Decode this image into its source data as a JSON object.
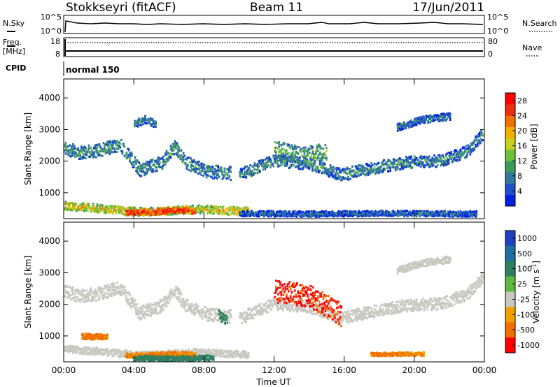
{
  "header": {
    "station": "Stokkseyri (fitACF)",
    "beam": "Beam 11",
    "date": "17/Jun/2011"
  },
  "top_panels": {
    "nsky_label": "N.Sky",
    "nsky_ticks": [
      "10^5",
      "10^0"
    ],
    "nsearch_label": "N.Search",
    "nsearch_ticks": [
      "10^5",
      "10^0"
    ],
    "freq_label": "Freq.",
    "freq_unit": "[MHz]",
    "freq_ticks": [
      "18",
      "8"
    ],
    "nave_label": "Nave",
    "nave_ticks": [
      "80",
      "0"
    ],
    "cpid_label": "CPID",
    "cpid_value": "normal 150"
  },
  "chart_data": [
    {
      "type": "heatmap",
      "name": "power",
      "xlabel": "",
      "ylabel": "Slant Range [km]",
      "x_ticks": [
        "00:00",
        "04:00",
        "08:00",
        "12:00",
        "16:00",
        "20:00",
        "00:00"
      ],
      "xlim_hours": [
        0,
        24
      ],
      "y_ticks": [
        1000,
        2000,
        3000,
        4000
      ],
      "ylim": [
        180,
        4600
      ],
      "colorbar": {
        "label": "Power [dB]",
        "ticks": [
          4,
          8,
          12,
          16,
          20,
          24,
          28
        ],
        "range": [
          0,
          30
        ],
        "colors": [
          "#0020e0",
          "#2050c8",
          "#30789c",
          "#3c9a5a",
          "#70c040",
          "#c8d020",
          "#f0b000",
          "#f07000",
          "#e83010",
          "#ff0000"
        ]
      },
      "echo_bands": [
        {
          "t": [
            0.0,
            0.8,
            1.8,
            3.2,
            4.3,
            5.6,
            6.3,
            6.9,
            8.2,
            9.5
          ],
          "r": [
            2450,
            2300,
            2350,
            2550,
            1750,
            2000,
            2500,
            2000,
            1700,
            1650
          ],
          "w": 260,
          "level": 10
        },
        {
          "t": [
            10.0,
            12.0,
            14.0,
            15.8,
            17.5,
            19.5,
            21.5,
            23.0,
            23.9
          ],
          "r": [
            1600,
            2050,
            1950,
            1600,
            1800,
            2000,
            2050,
            2350,
            2900
          ],
          "w": 240,
          "level": 9
        },
        {
          "t": [
            0.0,
            1.5,
            3.0,
            4.5,
            6.0,
            7.5,
            9.0,
            10.5
          ],
          "r": [
            620,
            560,
            480,
            430,
            460,
            520,
            470,
            450
          ],
          "w": 160,
          "level": 18
        },
        {
          "t": [
            3.5,
            5.0,
            6.5,
            7.5
          ],
          "r": [
            400,
            420,
            480,
            440
          ],
          "w": 110,
          "level": 27
        },
        {
          "t": [
            19.0,
            20.5,
            22.0
          ],
          "r": [
            3100,
            3350,
            3450
          ],
          "w": 140,
          "level": 8
        },
        {
          "t": [
            4.0,
            4.6,
            5.2
          ],
          "r": [
            3200,
            3350,
            3200
          ],
          "w": 150,
          "level": 9
        },
        {
          "t": [
            12.0,
            13.5,
            15.0
          ],
          "r": [
            2400,
            2200,
            2350
          ],
          "w": 350,
          "level": 12
        },
        {
          "t": [
            10.0,
            14.0,
            18.0,
            23.5
          ],
          "r": [
            380,
            360,
            380,
            360
          ],
          "w": 110,
          "level": 7
        }
      ]
    },
    {
      "type": "heatmap",
      "name": "velocity",
      "xlabel": "Time UT",
      "ylabel": "Slant Range [km]",
      "x_ticks": [
        "00:00",
        "04:00",
        "08:00",
        "12:00",
        "16:00",
        "20:00",
        "00:00"
      ],
      "xlim_hours": [
        0,
        24
      ],
      "y_ticks": [
        1000,
        2000,
        3000,
        4000
      ],
      "ylim": [
        180,
        4600
      ],
      "colorbar": {
        "label": "Velocity",
        "unit": "[m s",
        "unit_exp": "-1",
        "unit_close": "]",
        "ticks": [
          "1000",
          "500",
          "100",
          "25",
          "-25",
          "-100",
          "-500",
          "-1000"
        ],
        "colors": [
          "#2040c0",
          "#1e70a0",
          "#2e8060",
          "#60b840",
          "#c8c8c0",
          "#f0a000",
          "#f07000",
          "#ff0000"
        ]
      },
      "echo_bands": [
        {
          "t": [
            0.0,
            0.8,
            1.8,
            3.2,
            4.3,
            5.6,
            6.3,
            6.9,
            8.2,
            9.5
          ],
          "r": [
            2450,
            2300,
            2350,
            2550,
            1750,
            2000,
            2500,
            2000,
            1700,
            1650
          ],
          "w": 260,
          "v": 0
        },
        {
          "t": [
            10.0,
            12.0,
            14.0,
            15.8,
            17.5,
            19.5,
            21.5,
            23.0,
            23.9
          ],
          "r": [
            1600,
            2050,
            1950,
            1600,
            1800,
            2000,
            2050,
            2350,
            2900
          ],
          "w": 240,
          "v": 0
        },
        {
          "t": [
            0.0,
            1.5,
            3.0,
            4.5,
            6.0,
            7.5,
            9.0,
            10.5
          ],
          "r": [
            620,
            560,
            480,
            430,
            460,
            520,
            470,
            450
          ],
          "w": 140,
          "v": 0
        },
        {
          "t": [
            3.5,
            5.0,
            6.5,
            7.5
          ],
          "r": [
            420,
            430,
            460,
            440
          ],
          "w": 100,
          "v": -120
        },
        {
          "t": [
            1.0,
            2.5
          ],
          "r": [
            1020,
            1000
          ],
          "w": 110,
          "v": -150
        },
        {
          "t": [
            4.0,
            6.5,
            8.5
          ],
          "r": [
            330,
            320,
            340
          ],
          "w": 100,
          "v": 120
        },
        {
          "t": [
            8.8,
            9.3
          ],
          "r": [
            1700,
            1500
          ],
          "w": 180,
          "v": 150
        },
        {
          "t": [
            12.0,
            14.0,
            15.8
          ],
          "r": [
            2450,
            2300,
            1700
          ],
          "w": 450,
          "v": -600
        },
        {
          "t": [
            17.5,
            20.5
          ],
          "r": [
            450,
            460
          ],
          "w": 70,
          "v": -120
        },
        {
          "t": [
            19.0,
            20.5,
            22.0
          ],
          "r": [
            3100,
            3350,
            3450
          ],
          "w": 140,
          "v": 0
        }
      ]
    }
  ]
}
